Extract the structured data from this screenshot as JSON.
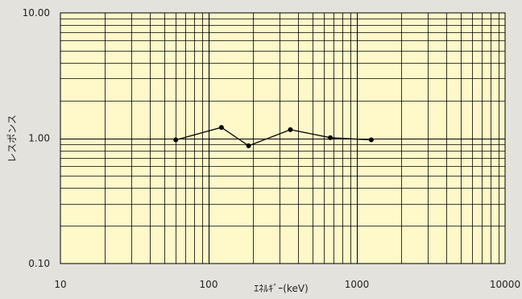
{
  "chart_data": {
    "type": "line",
    "title": "",
    "xlabel": "ｴﾈﾙｷﾞｰ(keV)",
    "ylabel": "レスポンス",
    "x_scale": "log",
    "y_scale": "log",
    "xlim": [
      10,
      10000
    ],
    "ylim": [
      0.1,
      10
    ],
    "grid": true,
    "x_tick_labels": [
      "10",
      "100",
      "1000",
      "10000"
    ],
    "y_tick_labels": [
      "0.10",
      "1.00",
      "10.00"
    ],
    "series": [
      {
        "x": [
          60,
          122,
          186,
          356,
          662,
          1250
        ],
        "y": [
          0.97,
          1.22,
          0.87,
          1.17,
          1.01,
          0.97
        ]
      }
    ],
    "colors": {
      "plot_background": "#fff9c9",
      "page_background": "#e4e2dd",
      "grid_line": "#000000",
      "series_line": "#000000"
    }
  }
}
